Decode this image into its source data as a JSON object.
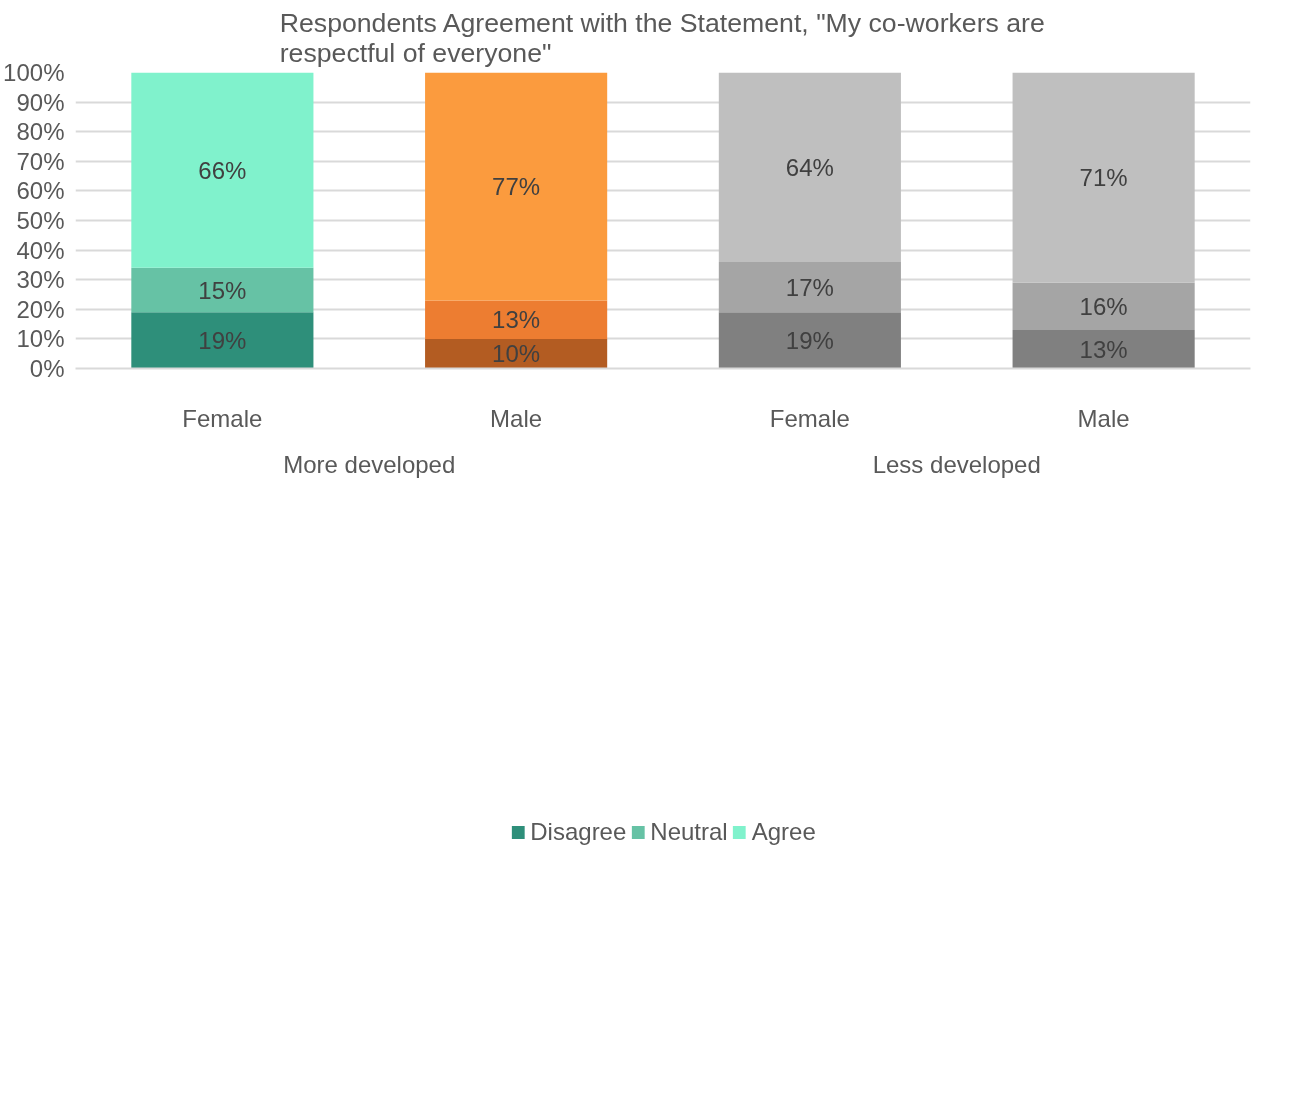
{
  "chart_data": {
    "type": "bar",
    "stacked": true,
    "title": "Respondents Agreement with the Statement, \"My co-workers are respectful of everyone\"",
    "categories": [
      "Female",
      "Male",
      "Female",
      "Male"
    ],
    "annotations": [
      "More developed",
      "Less developed"
    ],
    "series": [
      {
        "name": "Disagree",
        "color": "#2e8f7a",
        "colors": [
          "#2e8f7a",
          "#b35c22",
          "#808080",
          "#808080"
        ],
        "values": [
          19,
          10,
          19,
          13
        ],
        "value_labels": [
          "19%",
          "10%",
          "19%",
          "13%"
        ]
      },
      {
        "name": "Neutral",
        "color": "#66c2a5",
        "colors": [
          "#66c2a5",
          "#ed7d31",
          "#a5a5a5",
          "#a5a5a5"
        ],
        "values": [
          15,
          13,
          17,
          16
        ],
        "value_labels": [
          "15%",
          "13%",
          "17%",
          "16%"
        ]
      },
      {
        "name": "Agree",
        "color": "#80f2cc",
        "colors": [
          "#80f2cc",
          "#fb9b3e",
          "#bfbfbf",
          "#bfbfbf"
        ],
        "values": [
          66,
          77,
          64,
          71
        ],
        "value_labels": [
          "66%",
          "77%",
          "64%",
          "71%"
        ]
      }
    ],
    "ylim": [
      0,
      100
    ],
    "yticks": [
      {
        "value": 0,
        "label": "0%"
      },
      {
        "value": 10,
        "label": "10%"
      },
      {
        "value": 20,
        "label": "20%"
      },
      {
        "value": 30,
        "label": "30%"
      },
      {
        "value": 40,
        "label": "40%"
      },
      {
        "value": 50,
        "label": "50%"
      },
      {
        "value": 60,
        "label": "60%"
      },
      {
        "value": 70,
        "label": "70%"
      },
      {
        "value": 80,
        "label": "80%"
      },
      {
        "value": 90,
        "label": "90%"
      },
      {
        "value": 100,
        "label": "100%"
      }
    ],
    "grid": "y",
    "legend": "bottom"
  }
}
